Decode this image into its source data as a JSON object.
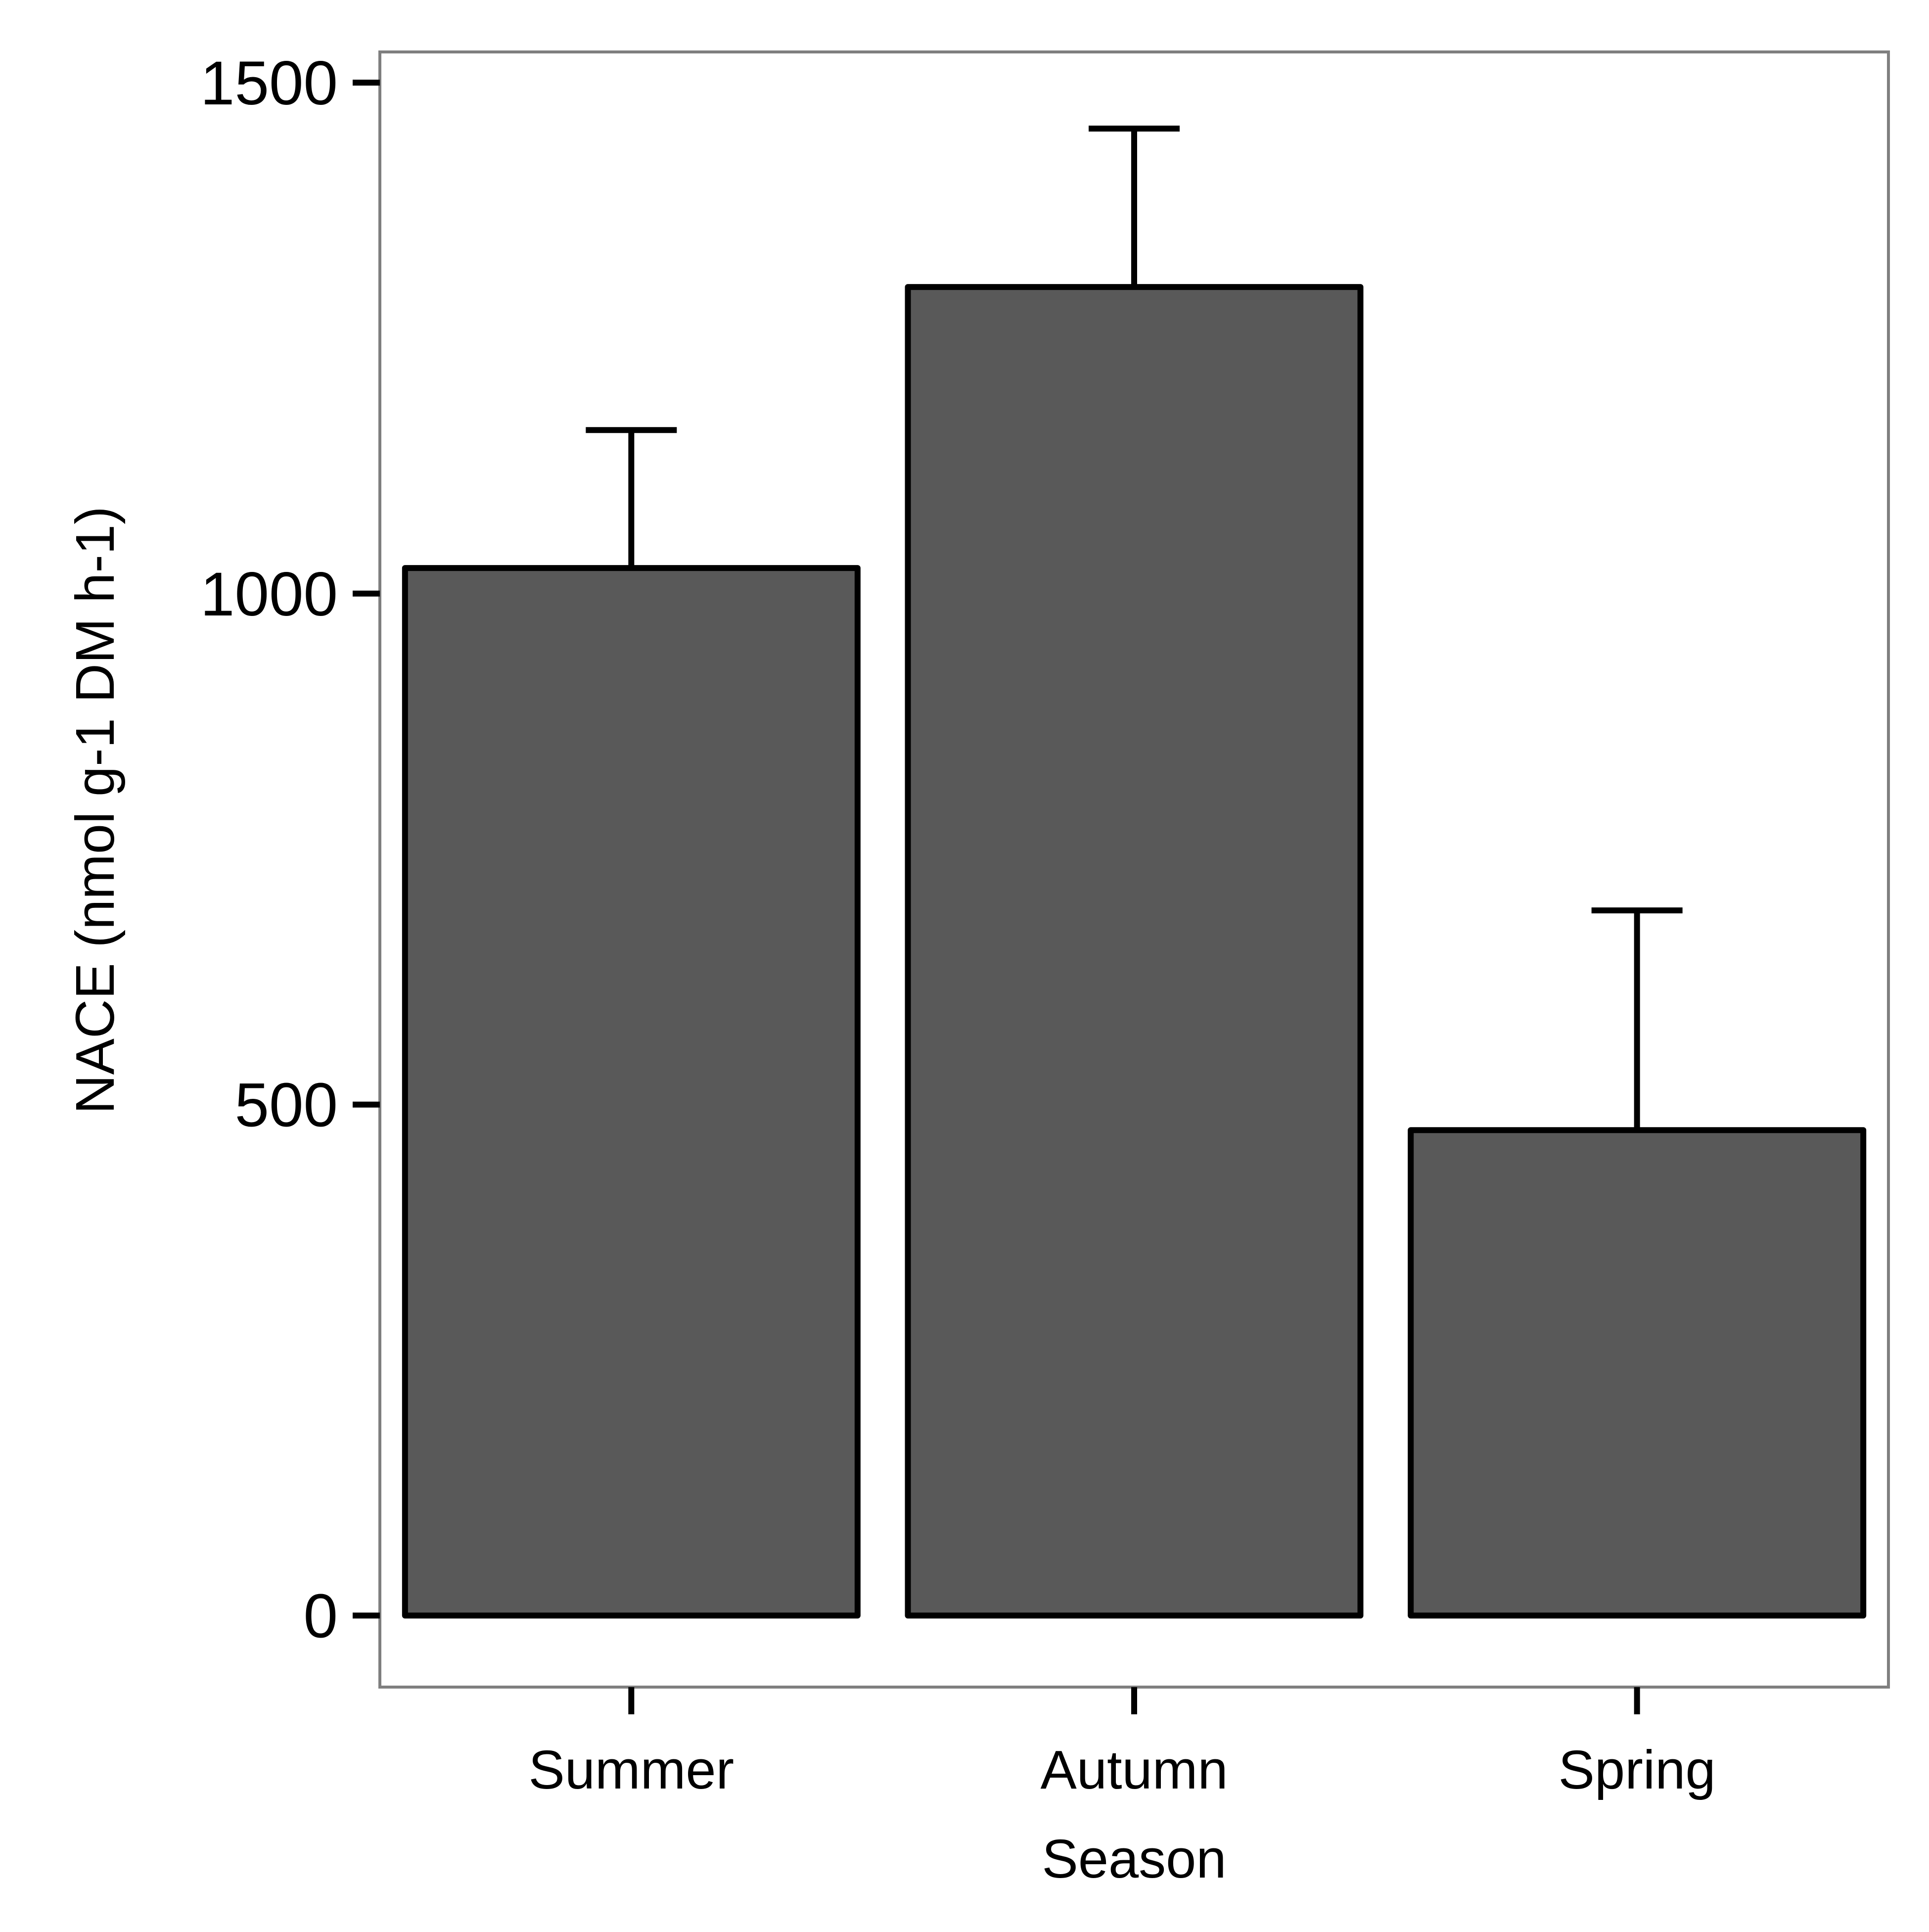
{
  "chart_data": {
    "type": "bar",
    "title": "",
    "xlabel": "Season",
    "ylabel": "NACE (nmol g-1 DM h-1)",
    "categories": [
      "Summer",
      "Autumn",
      "Spring"
    ],
    "values": [
      1025,
      1300,
      475
    ],
    "error_upper": [
      1160,
      1455,
      690
    ],
    "ylim": [
      -70,
      1530
    ],
    "yticks": [
      0,
      500,
      1000,
      1500
    ],
    "grid": false,
    "legend": "none",
    "colors": {
      "bar_fill": "#595959",
      "bar_stroke": "#000000",
      "panel_border": "#7f7f7f",
      "error_bar": "#000000"
    }
  }
}
